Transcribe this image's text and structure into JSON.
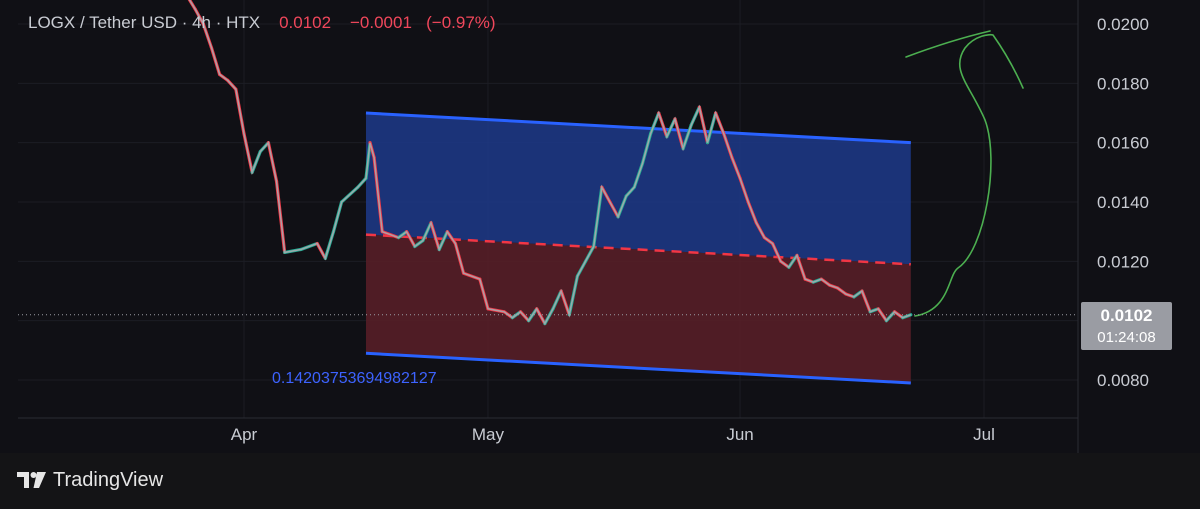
{
  "header": {
    "pair": "LOGX / Tether USD",
    "interval": "4h",
    "exchange": "HTX",
    "last": "0.0102",
    "change": "−0.0001",
    "change_pct": "(−0.97%)"
  },
  "price_label": {
    "price": "0.0102",
    "countdown": "01:24:08"
  },
  "channel_annotation": "0.14203753694982127",
  "brand": "TradingView",
  "colors": {
    "up": "#22ab94",
    "down": "#f23645",
    "channel_line": "#2962ff",
    "upper_fill": "#1d3a8a",
    "lower_fill": "#5a1e28",
    "drawing": "#4caf50",
    "axis_text": "#c9ccd3"
  },
  "chart_data": {
    "type": "line",
    "title": "LOGX / Tether USD · 4h · HTX",
    "xlabel": "",
    "ylabel": "",
    "x_ticks": [
      "Apr",
      "May",
      "Jun",
      "Jul"
    ],
    "y_ticks": [
      "0.0200",
      "0.0180",
      "0.0160",
      "0.0140",
      "0.0120",
      "0.0080"
    ],
    "ylim": [
      0.0071,
      0.0208
    ],
    "grid": true,
    "last_price": 0.0102,
    "series": [
      {
        "values_by_date": [
          [
            "2024-03-22",
            0.0216
          ],
          [
            "2024-03-24",
            0.0214
          ],
          [
            "2024-03-26",
            0.0205
          ],
          [
            "2024-03-27",
            0.02
          ],
          [
            "2024-03-28",
            0.0192
          ],
          [
            "2024-03-29",
            0.0183
          ],
          [
            "2024-03-30",
            0.0181
          ],
          [
            "2024-03-31",
            0.0178
          ],
          [
            "2024-04-01",
            0.0163
          ],
          [
            "2024-04-02",
            0.015
          ],
          [
            "2024-04-03",
            0.0157
          ],
          [
            "2024-04-04",
            0.016
          ],
          [
            "2024-04-05",
            0.0147
          ],
          [
            "2024-04-06",
            0.0123
          ],
          [
            "2024-04-08",
            0.0124
          ],
          [
            "2024-04-10",
            0.0126
          ],
          [
            "2024-04-11",
            0.0121
          ],
          [
            "2024-04-12",
            0.013
          ],
          [
            "2024-04-13",
            0.014
          ],
          [
            "2024-04-15",
            0.0145
          ],
          [
            "2024-04-16",
            0.0148
          ],
          [
            "2024-04-16T12",
            0.016
          ],
          [
            "2024-04-17",
            0.0155
          ],
          [
            "2024-04-18",
            0.013
          ],
          [
            "2024-04-20",
            0.0128
          ],
          [
            "2024-04-21",
            0.013
          ],
          [
            "2024-04-22",
            0.0125
          ],
          [
            "2024-04-23",
            0.0127
          ],
          [
            "2024-04-24",
            0.0133
          ],
          [
            "2024-04-25",
            0.0124
          ],
          [
            "2024-04-26",
            0.013
          ],
          [
            "2024-04-27",
            0.0126
          ],
          [
            "2024-04-28",
            0.0116
          ],
          [
            "2024-04-30",
            0.0114
          ],
          [
            "2024-05-01",
            0.0104
          ],
          [
            "2024-05-03",
            0.0103
          ],
          [
            "2024-05-04",
            0.0101
          ],
          [
            "2024-05-05",
            0.0103
          ],
          [
            "2024-05-06",
            0.01
          ],
          [
            "2024-05-07",
            0.0104
          ],
          [
            "2024-05-08",
            0.0099
          ],
          [
            "2024-05-09",
            0.0104
          ],
          [
            "2024-05-10",
            0.011
          ],
          [
            "2024-05-11",
            0.0102
          ],
          [
            "2024-05-12",
            0.0115
          ],
          [
            "2024-05-13",
            0.012
          ],
          [
            "2024-05-14",
            0.0125
          ],
          [
            "2024-05-15",
            0.0145
          ],
          [
            "2024-05-16",
            0.014
          ],
          [
            "2024-05-17",
            0.0135
          ],
          [
            "2024-05-18",
            0.0142
          ],
          [
            "2024-05-19",
            0.0145
          ],
          [
            "2024-05-20",
            0.0153
          ],
          [
            "2024-05-21",
            0.0163
          ],
          [
            "2024-05-22",
            0.017
          ],
          [
            "2024-05-23",
            0.0162
          ],
          [
            "2024-05-24",
            0.0168
          ],
          [
            "2024-05-25",
            0.0158
          ],
          [
            "2024-05-26",
            0.0166
          ],
          [
            "2024-05-27",
            0.0172
          ],
          [
            "2024-05-28",
            0.016
          ],
          [
            "2024-05-29",
            0.017
          ],
          [
            "2024-05-30",
            0.0163
          ],
          [
            "2024-05-31",
            0.0155
          ],
          [
            "2024-06-01",
            0.0148
          ],
          [
            "2024-06-02",
            0.014
          ],
          [
            "2024-06-03",
            0.0133
          ],
          [
            "2024-06-04",
            0.0128
          ],
          [
            "2024-06-05",
            0.0126
          ],
          [
            "2024-06-06",
            0.012
          ],
          [
            "2024-06-07",
            0.0118
          ],
          [
            "2024-06-08",
            0.0122
          ],
          [
            "2024-06-09",
            0.0114
          ],
          [
            "2024-06-10",
            0.0113
          ],
          [
            "2024-06-11",
            0.0114
          ],
          [
            "2024-06-12",
            0.0112
          ],
          [
            "2024-06-13",
            0.0111
          ],
          [
            "2024-06-14",
            0.0109
          ],
          [
            "2024-06-15",
            0.0108
          ],
          [
            "2024-06-16",
            0.011
          ],
          [
            "2024-06-17",
            0.0103
          ],
          [
            "2024-06-18",
            0.0104
          ],
          [
            "2024-06-19",
            0.01
          ],
          [
            "2024-06-20",
            0.0103
          ],
          [
            "2024-06-21",
            0.0101
          ],
          [
            "2024-06-22",
            0.0102
          ]
        ]
      }
    ],
    "channel": {
      "upper_line": {
        "start": [
          "2024-04-16",
          0.017
        ],
        "end": [
          "2024-06-22",
          0.016
        ]
      },
      "mid_line": {
        "start": [
          "2024-04-16",
          0.0129
        ],
        "end": [
          "2024-06-22",
          0.0119
        ]
      },
      "lower_line": {
        "start": [
          "2024-04-16",
          0.0089
        ],
        "end": [
          "2024-06-22",
          0.0079
        ]
      }
    },
    "annotation": "0.14203753694982127"
  }
}
